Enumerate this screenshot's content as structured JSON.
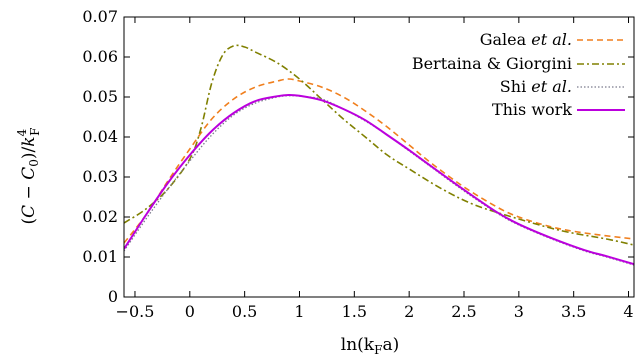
{
  "chart_data": {
    "type": "line",
    "xlabel": "ln(k_F a)",
    "ylabel": "(C − C_0)/k_F^4",
    "xlim": [
      -0.6,
      4.05
    ],
    "ylim": [
      0,
      0.07
    ],
    "xticks": [
      -0.5,
      0,
      0.5,
      1,
      1.5,
      2,
      2.5,
      3,
      3.5,
      4
    ],
    "yticks": [
      0,
      0.01,
      0.02,
      0.03,
      0.04,
      0.05,
      0.06,
      0.07
    ],
    "xtick_labels": [
      "−0.5",
      "0",
      "0.5",
      "1",
      "1.5",
      "2",
      "2.5",
      "3",
      "3.5",
      "4"
    ],
    "ytick_labels": [
      "0",
      "0.01",
      "0.02",
      "0.03",
      "0.04",
      "0.05",
      "0.06",
      "0.07"
    ],
    "grid": false,
    "legend_position": "top-right",
    "series": [
      {
        "name": "Galea et al.",
        "color": "#f07f1d",
        "dash": "dashed",
        "x": [
          -0.6,
          -0.4,
          -0.2,
          0.0,
          0.2,
          0.4,
          0.6,
          0.8,
          0.9,
          1.0,
          1.2,
          1.4,
          1.6,
          1.8,
          2.0,
          2.2,
          2.5,
          2.8,
          3.0,
          3.3,
          3.6,
          4.05
        ],
        "y": [
          0.0135,
          0.0205,
          0.029,
          0.037,
          0.0445,
          0.0495,
          0.0525,
          0.054,
          0.0545,
          0.054,
          0.0525,
          0.05,
          0.0465,
          0.0425,
          0.038,
          0.0335,
          0.0275,
          0.0225,
          0.02,
          0.0175,
          0.016,
          0.0145
        ]
      },
      {
        "name": "Bertaina & Giorgini",
        "color": "#808000",
        "dash": "dashdot",
        "x": [
          -0.6,
          -0.4,
          -0.2,
          0.0,
          0.1,
          0.2,
          0.3,
          0.4,
          0.5,
          0.6,
          0.8,
          1.0,
          1.2,
          1.4,
          1.6,
          1.8,
          2.0,
          2.3,
          2.6,
          3.0,
          3.4,
          3.8,
          4.05
        ],
        "y": [
          0.0185,
          0.022,
          0.027,
          0.0345,
          0.042,
          0.0535,
          0.0605,
          0.0628,
          0.0625,
          0.0612,
          0.0585,
          0.0545,
          0.0495,
          0.0445,
          0.04,
          0.0355,
          0.032,
          0.027,
          0.023,
          0.0195,
          0.0165,
          0.0145,
          0.013
        ]
      },
      {
        "name": "Shi et al.",
        "color": "#7a7a8c",
        "dash": "dotted",
        "x": [
          -0.6,
          -0.4,
          -0.2,
          0.0,
          0.2,
          0.4,
          0.6,
          0.8,
          0.9,
          1.0,
          1.2,
          1.4,
          1.6,
          1.8,
          2.0,
          2.2,
          2.5,
          2.8,
          3.0,
          3.3,
          3.6,
          3.8,
          4.05
        ],
        "y": [
          0.0115,
          0.0195,
          0.027,
          0.034,
          0.0405,
          0.0455,
          0.0485,
          0.05,
          0.0503,
          0.0502,
          0.0495,
          0.047,
          0.044,
          0.0405,
          0.0365,
          0.0325,
          0.0265,
          0.021,
          0.018,
          0.0145,
          0.0115,
          0.01,
          0.008
        ]
      },
      {
        "name": "This work",
        "color": "#bb00dd",
        "dash": "solid",
        "x": [
          -0.6,
          -0.4,
          -0.2,
          0.0,
          0.2,
          0.4,
          0.6,
          0.8,
          0.9,
          1.0,
          1.2,
          1.4,
          1.6,
          1.8,
          2.0,
          2.2,
          2.5,
          2.8,
          3.0,
          3.3,
          3.6,
          3.8,
          4.05
        ],
        "y": [
          0.012,
          0.0205,
          0.0285,
          0.0355,
          0.0415,
          0.046,
          0.049,
          0.0502,
          0.0505,
          0.0503,
          0.0492,
          0.047,
          0.0442,
          0.0405,
          0.0367,
          0.0327,
          0.0268,
          0.0212,
          0.0182,
          0.0147,
          0.0117,
          0.0102,
          0.0082
        ]
      }
    ]
  }
}
